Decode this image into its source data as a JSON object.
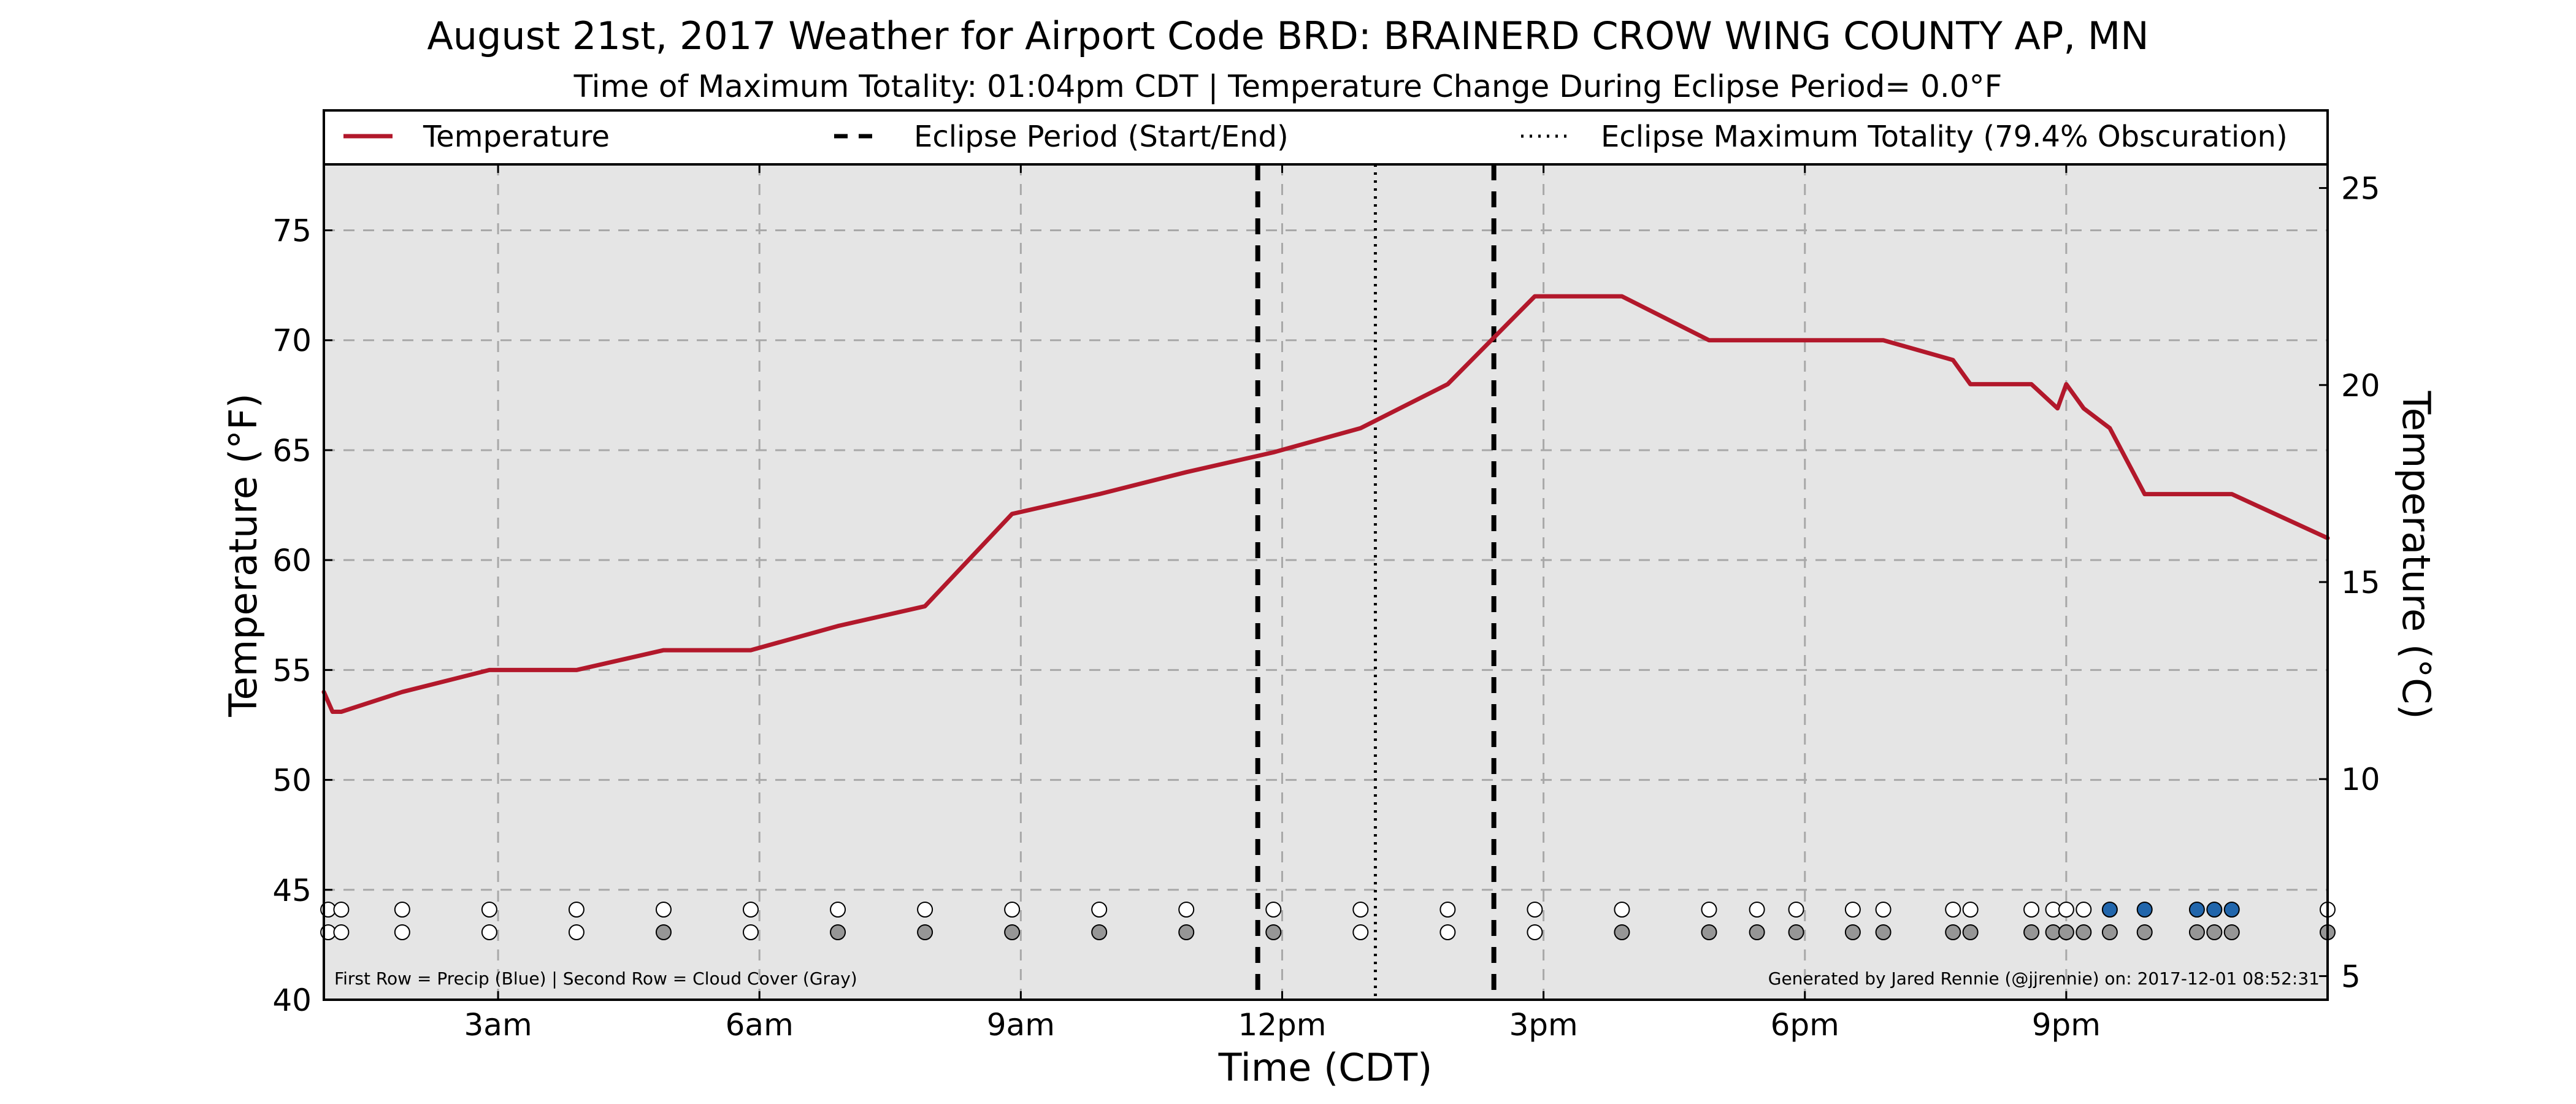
{
  "chart_data": {
    "type": "line",
    "title": "August 21st, 2017 Weather for Airport Code BRD: BRAINERD CROW WING COUNTY AP, MN",
    "subtitle": "Time of Maximum Totality: 01:04pm CDT | Temperature Change During Eclipse Period= 0.0°F",
    "xlabel": "Time (CDT)",
    "ylabel": "Temperature (°F)",
    "ylabel_right": "Temperature (°C)",
    "xlim": [
      1.0,
      24.0
    ],
    "ylim": [
      40,
      78
    ],
    "ylim_right": [
      4.4,
      25.6
    ],
    "x_ticks": [
      {
        "x": 3,
        "label": "3am"
      },
      {
        "x": 6,
        "label": "6am"
      },
      {
        "x": 9,
        "label": "9am"
      },
      {
        "x": 12,
        "label": "12pm"
      },
      {
        "x": 15,
        "label": "3pm"
      },
      {
        "x": 18,
        "label": "6pm"
      },
      {
        "x": 21,
        "label": "9pm"
      }
    ],
    "y_ticks": [
      40,
      45,
      50,
      55,
      60,
      65,
      70,
      75
    ],
    "y_ticks_right": [
      5,
      10,
      15,
      20,
      25
    ],
    "grid": true,
    "legend": {
      "placement": "top",
      "entries": [
        {
          "label": "Temperature",
          "style": "solid"
        },
        {
          "label": "Eclipse Period (Start/End)",
          "style": "dashed"
        },
        {
          "label": "Eclipse Maximum Totality (79.4% Obscuration)",
          "style": "dotted"
        }
      ]
    },
    "series": [
      {
        "name": "Temperature",
        "color": "#b2182b",
        "points": [
          [
            1.0,
            54.0
          ],
          [
            1.1,
            53.1
          ],
          [
            1.2,
            53.1
          ],
          [
            1.9,
            54.0
          ],
          [
            2.9,
            55.0
          ],
          [
            3.9,
            55.0
          ],
          [
            4.9,
            55.9
          ],
          [
            5.9,
            55.9
          ],
          [
            6.9,
            57.0
          ],
          [
            7.9,
            57.9
          ],
          [
            8.9,
            62.1
          ],
          [
            9.9,
            63.0
          ],
          [
            10.9,
            64.0
          ],
          [
            11.9,
            64.9
          ],
          [
            12.9,
            66.0
          ],
          [
            13.9,
            68.0
          ],
          [
            14.9,
            72.0
          ],
          [
            15.9,
            72.0
          ],
          [
            16.9,
            70.0
          ],
          [
            17.9,
            70.0
          ],
          [
            18.9,
            70.0
          ],
          [
            19.7,
            69.1
          ],
          [
            19.9,
            68.0
          ],
          [
            20.6,
            68.0
          ],
          [
            20.9,
            66.9
          ],
          [
            21.0,
            68.0
          ],
          [
            21.2,
            66.9
          ],
          [
            21.5,
            66.0
          ],
          [
            21.9,
            63.0
          ],
          [
            22.9,
            63.0
          ],
          [
            24.0,
            61.0
          ]
        ]
      }
    ],
    "eclipse": {
      "start": 11.72,
      "end": 14.43,
      "max_totality": 13.07
    },
    "observation_times": [
      1.05,
      1.2,
      1.9,
      2.9,
      3.9,
      4.9,
      5.9,
      6.9,
      7.9,
      8.9,
      9.9,
      10.9,
      11.9,
      12.9,
      13.9,
      14.9,
      15.9,
      16.9,
      17.45,
      17.9,
      18.55,
      18.9,
      19.7,
      19.9,
      20.6,
      20.85,
      21.0,
      21.2,
      21.5,
      21.9,
      22.5,
      22.7,
      22.9,
      24.0
    ],
    "precip_row": [
      "none",
      "none",
      "none",
      "none",
      "none",
      "none",
      "none",
      "none",
      "none",
      "none",
      "none",
      "none",
      "none",
      "none",
      "none",
      "none",
      "none",
      "none",
      "none",
      "none",
      "none",
      "none",
      "none",
      "none",
      "none",
      "none",
      "none",
      "none",
      "precip",
      "precip",
      "precip",
      "precip",
      "precip",
      "none"
    ],
    "cloud_row": [
      "clear",
      "clear",
      "clear",
      "clear",
      "clear",
      "cloudy",
      "clear",
      "cloudy",
      "cloudy",
      "cloudy",
      "cloudy",
      "cloudy",
      "cloudy",
      "clear",
      "clear",
      "clear",
      "cloudy",
      "cloudy",
      "cloudy",
      "cloudy",
      "cloudy",
      "cloudy",
      "cloudy",
      "cloudy",
      "cloudy",
      "cloudy",
      "cloudy",
      "cloudy",
      "cloudy",
      "cloudy",
      "cloudy",
      "cloudy",
      "cloudy",
      "cloudy"
    ],
    "colors": {
      "plot_bg": "#e5e5e5",
      "line": "#b2182b",
      "precip": "#2166ac",
      "cloud": "#969696",
      "clear": "#ffffff",
      "grid": "#a8a8a8"
    },
    "footnote_left": "First Row = Precip (Blue) | Second Row = Cloud Cover (Gray)",
    "footnote_right": "Generated by Jared Rennie (@jjrennie) on: 2017-12-01 08:52:31"
  }
}
